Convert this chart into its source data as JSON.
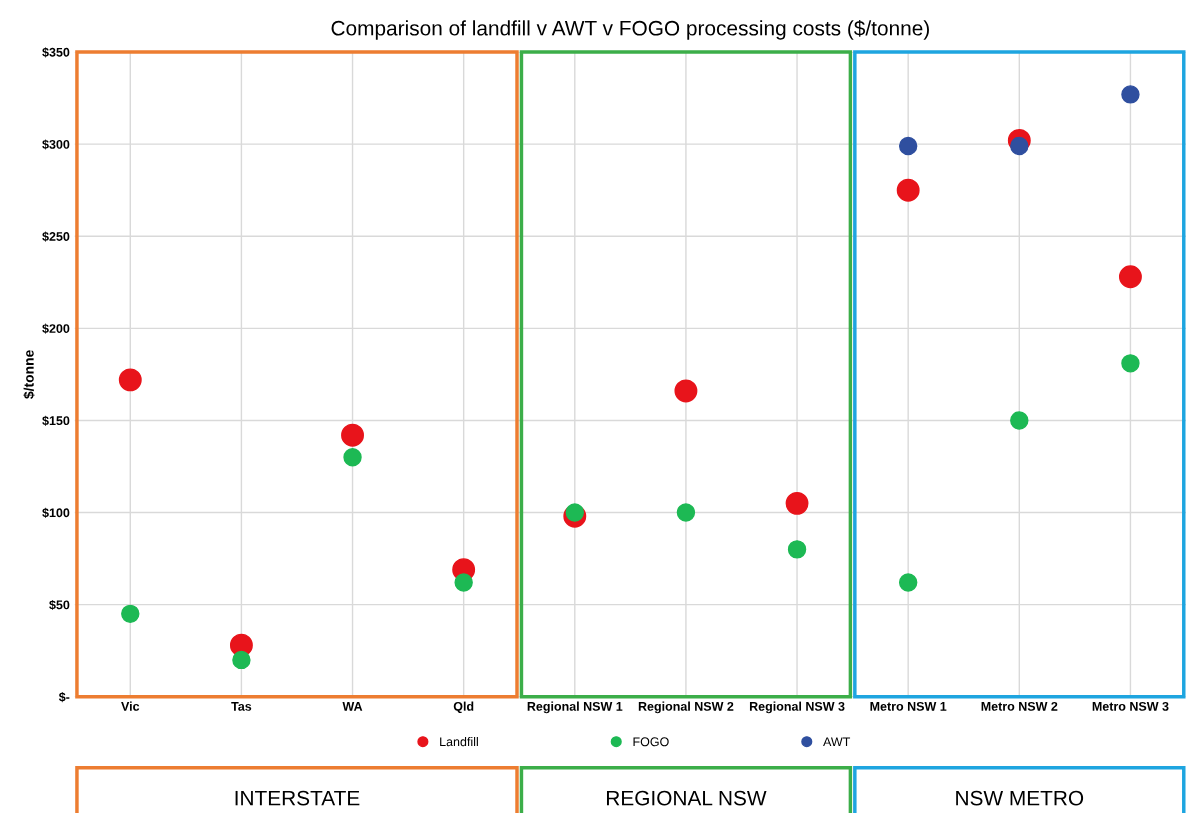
{
  "chart_data": {
    "type": "scatter",
    "title": "Comparison of landfill v AWT v FOGO processing costs ($/tonne)",
    "ylabel": "$/tonne",
    "categories": [
      "Vic",
      "Tas",
      "WA",
      "Qld",
      "Regional NSW 1",
      "Regional NSW 2",
      "Regional NSW 3",
      "Metro NSW 1",
      "Metro NSW 2",
      "Metro NSW 3"
    ],
    "series": [
      {
        "name": "Landfill",
        "color": "#e8141b",
        "values": [
          172,
          28,
          142,
          69,
          98,
          166,
          105,
          275,
          302,
          228
        ]
      },
      {
        "name": "FOGO",
        "color": "#1db954",
        "values": [
          45,
          20,
          130,
          62,
          100,
          100,
          80,
          62,
          150,
          181
        ]
      },
      {
        "name": "AWT",
        "color": "#2f4f9f",
        "values": [
          null,
          null,
          null,
          null,
          null,
          null,
          null,
          299,
          299,
          327
        ]
      }
    ],
    "ylim": [
      0,
      350
    ],
    "yticks": [
      {
        "value": 0,
        "label": "$-"
      },
      {
        "value": 50,
        "label": "$50"
      },
      {
        "value": 100,
        "label": "$100"
      },
      {
        "value": 150,
        "label": "$150"
      },
      {
        "value": 200,
        "label": "$200"
      },
      {
        "value": 250,
        "label": "$250"
      },
      {
        "value": 300,
        "label": "$300"
      },
      {
        "value": 350,
        "label": "$350"
      }
    ],
    "annotations": [
      "INTERSTATE",
      "REGIONAL NSW",
      "NSW METRO"
    ],
    "grid": true,
    "legend": "bottom",
    "marker": "circle"
  }
}
